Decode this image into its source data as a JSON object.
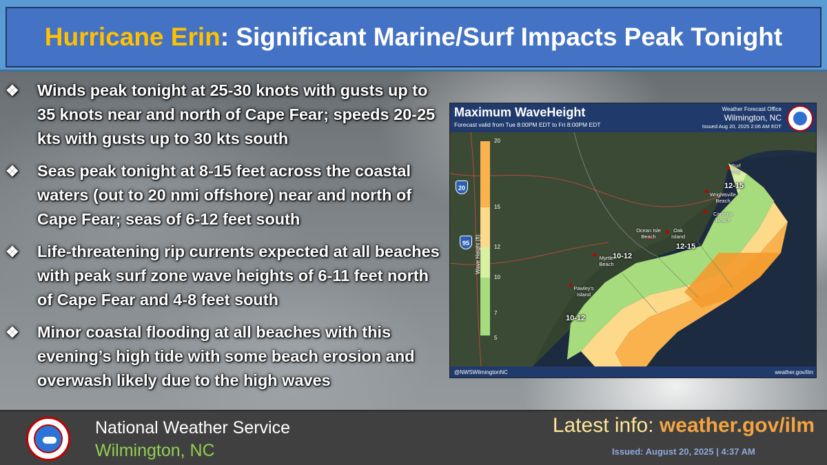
{
  "header": {
    "title_storm": "Hurricane Erin",
    "title_rest": ": Significant Marine/Surf Impacts Peak Tonight"
  },
  "bullets": [
    {
      "mark": "❖",
      "text": "Winds peak tonight at 25-30 knots with gusts up to 35 knots near and north of Cape Fear; speeds 20-25 kts with gusts up to 30 kts south"
    },
    {
      "mark": "❖",
      "text": "Seas peak tonight at 8-15 feet across the coastal waters (out to 20 nmi offshore) near and north of Cape Fear; seas of 6-12 feet south"
    },
    {
      "mark": "❖",
      "text": "Life-threatening rip currents expected at all beaches with peak surf zone wave heights of 6-11 feet north of Cape Fear and 4-8 feet south"
    },
    {
      "mark": "❖",
      "text": "Minor coastal flooding at all beaches with this evening’s high tide with some beach erosion and overwash likely due to the high waves"
    }
  ],
  "map": {
    "title": "Maximum WaveHeight",
    "valid": "Forecast valid from Tue 8:00PM EDT to Fri 8:00PM EDT",
    "office_line1": "Weather Forecast Office",
    "office_line2": "Wilmington, NC",
    "issued": "Issued Aug 20, 2025 2:06 AM EDT",
    "social": "@NWSWilmingtonNC",
    "url": "weather.gov/ilm",
    "scale": {
      "title": "Wave Height (ft)",
      "ticks": [
        "20",
        "15",
        "12",
        "10",
        "7",
        "5"
      ]
    },
    "shields": [
      "20",
      "95"
    ],
    "places": [
      "Surf City",
      "Wrightsville Beach",
      "Carolina Beach",
      "Oak Island",
      "Ocean Isle Beach",
      "Myrtle Beach",
      "Pawley's Island"
    ],
    "ranges": [
      "12-15",
      "12-15",
      "10-12",
      "10-12"
    ],
    "colors": {
      "light_green": "#d9f0a3",
      "green": "#a6dc7d",
      "light_orange": "#fdd98a",
      "orange": "#f9b24d",
      "dark_orange": "#f39a2e"
    }
  },
  "footer": {
    "org_name": "National Weather Service",
    "org_city": "Wilmington, NC",
    "latest_label": "Latest info: ",
    "latest_url": "weather.gov/ilm",
    "issued": "Issued:  August 20, 2025 | 4:37 AM"
  }
}
